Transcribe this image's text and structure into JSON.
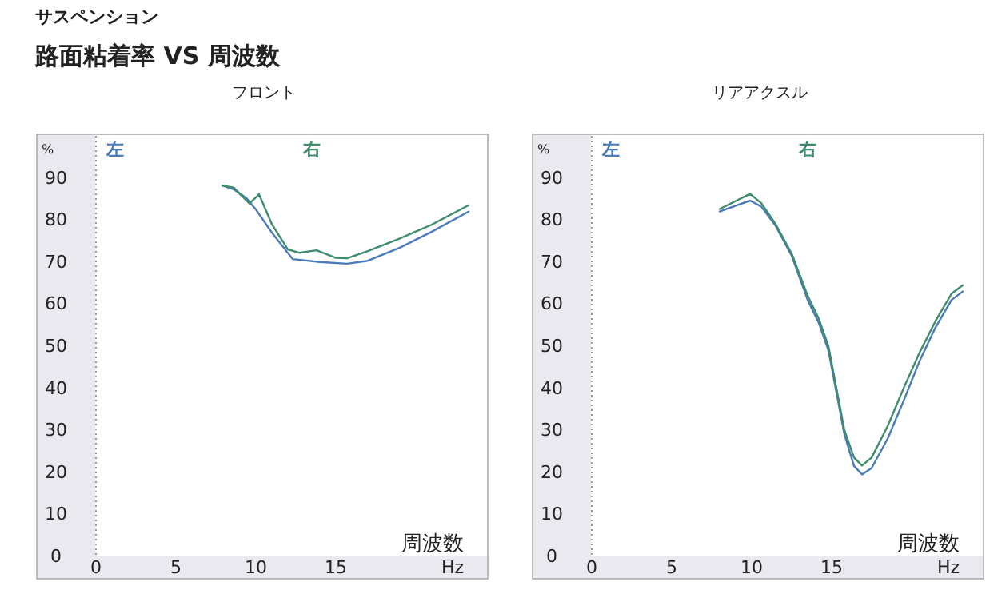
{
  "chart_data": [
    {
      "type": "other",
      "title": "路面粘着率 VS 周波数",
      "subtitle": "サスペンション"
    },
    {
      "type": "line",
      "title": "フロント",
      "xlabel": "Hz",
      "ylabel": "%",
      "annotations": [
        "周波数"
      ],
      "legend": "top",
      "xlim": [
        0,
        24.5
      ],
      "ylim": [
        0,
        100
      ],
      "xticks": [
        0,
        5,
        10,
        15
      ],
      "yticks": [
        0,
        10,
        20,
        30,
        40,
        50,
        60,
        70,
        80,
        90
      ],
      "series": [
        {
          "name": "左",
          "color": "#4a7ab8",
          "x": [
            7.9,
            8.6,
            9.4,
            10,
            11,
            12.3,
            14,
            15.7,
            17,
            19,
            21,
            23.3
          ],
          "values": [
            88.2,
            87.3,
            85.2,
            82.5,
            77,
            70.7,
            70,
            69.6,
            70.3,
            73.4,
            77.2,
            82
          ]
        },
        {
          "name": "右",
          "color": "#3e8c6c",
          "x": [
            7.9,
            8.6,
            9.6,
            10.2,
            11,
            12,
            12.7,
            13.8,
            15,
            15.7,
            17,
            19,
            21,
            23.3
          ],
          "values": [
            88.2,
            87.7,
            83.9,
            86.1,
            79,
            73,
            72.2,
            72.8,
            71,
            70.9,
            72.6,
            75.6,
            78.9,
            83.5
          ]
        }
      ]
    },
    {
      "type": "line",
      "title": "リアアクスル",
      "xlabel": "Hz",
      "ylabel": "%",
      "annotations": [
        "周波数"
      ],
      "legend": "top",
      "xlim": [
        0,
        24.5
      ],
      "ylim": [
        0,
        100
      ],
      "xticks": [
        0,
        5,
        10,
        15
      ],
      "yticks": [
        0,
        10,
        20,
        30,
        40,
        50,
        60,
        70,
        80,
        90
      ],
      "series": [
        {
          "name": "左",
          "color": "#4a7ab8",
          "x": [
            8,
            9,
            9.9,
            10.6,
            11.5,
            12.5,
            13.5,
            14.2,
            14.8,
            15.3,
            15.8,
            16.4,
            16.9,
            17.5,
            18.5,
            19.5,
            20.5,
            21.5,
            22.5,
            23.2
          ],
          "values": [
            82,
            83.4,
            84.6,
            83.2,
            78.6,
            71.5,
            61,
            55.5,
            49,
            39,
            29,
            21.5,
            19.5,
            21,
            28,
            37,
            46.5,
            54.5,
            61,
            63
          ]
        },
        {
          "name": "右",
          "color": "#3e8c6c",
          "x": [
            8,
            9,
            9.9,
            10.6,
            11.5,
            12.5,
            13.5,
            14.2,
            14.8,
            15.3,
            15.8,
            16.4,
            16.9,
            17.5,
            18.5,
            19.5,
            20.5,
            21.5,
            22.5,
            23.2
          ],
          "values": [
            82.6,
            84.5,
            86.2,
            84,
            79,
            72,
            62,
            56.5,
            50,
            40,
            30,
            23.5,
            21.6,
            23.5,
            31,
            40,
            48.5,
            56,
            62.5,
            64.5
          ]
        }
      ]
    }
  ]
}
